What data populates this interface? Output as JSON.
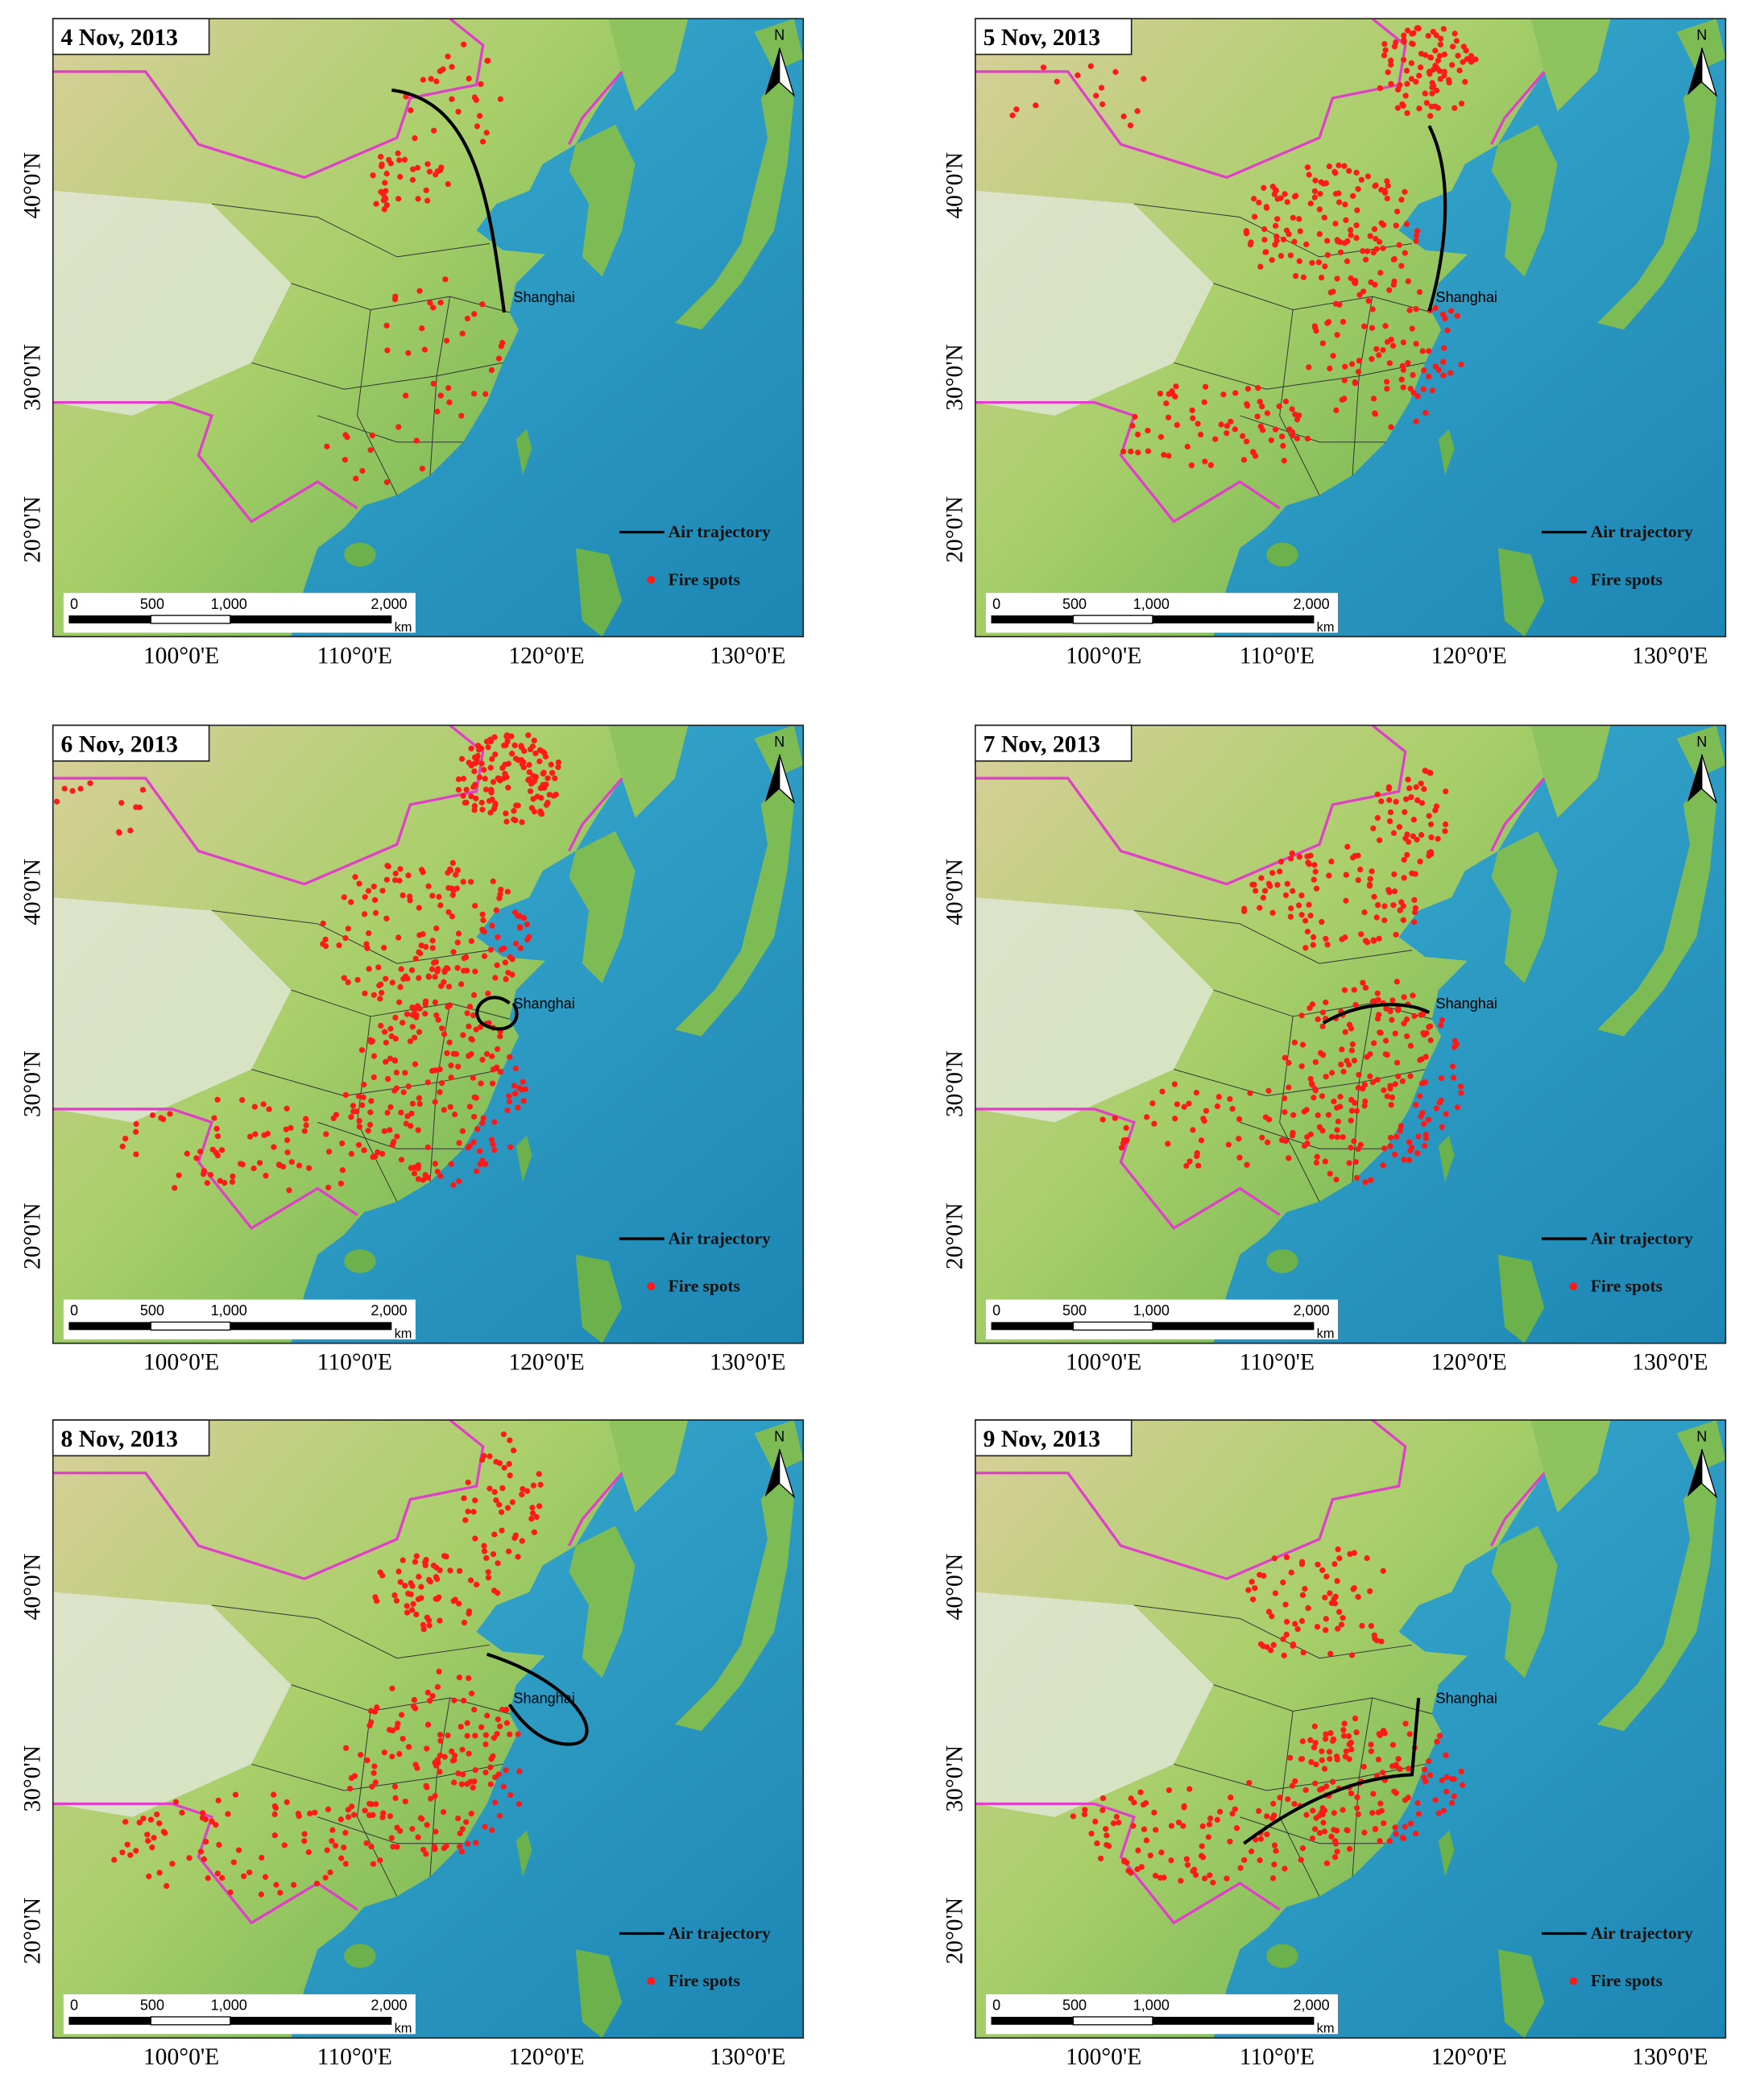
{
  "panels": [
    {
      "title": "4 Nov, 2013"
    },
    {
      "title": "5 Nov, 2013"
    },
    {
      "title": "6 Nov, 2013"
    },
    {
      "title": "7 Nov, 2013"
    },
    {
      "title": "8 Nov, 2013"
    },
    {
      "title": "9 Nov, 2013"
    }
  ],
  "city_label": "Shanghai",
  "legend": {
    "trajectory": "Air trajectory",
    "fire": "Fire spots"
  },
  "north": "N",
  "scale": {
    "labels": [
      "0",
      "500",
      "1,000",
      "2,000"
    ],
    "unit": "km"
  },
  "lon_labels": [
    "100°0'E",
    "110°0'E",
    "120°0'E",
    "130°0'E"
  ],
  "lat_labels": [
    "40°0'N",
    "30°0'N",
    "20°0'N"
  ]
}
